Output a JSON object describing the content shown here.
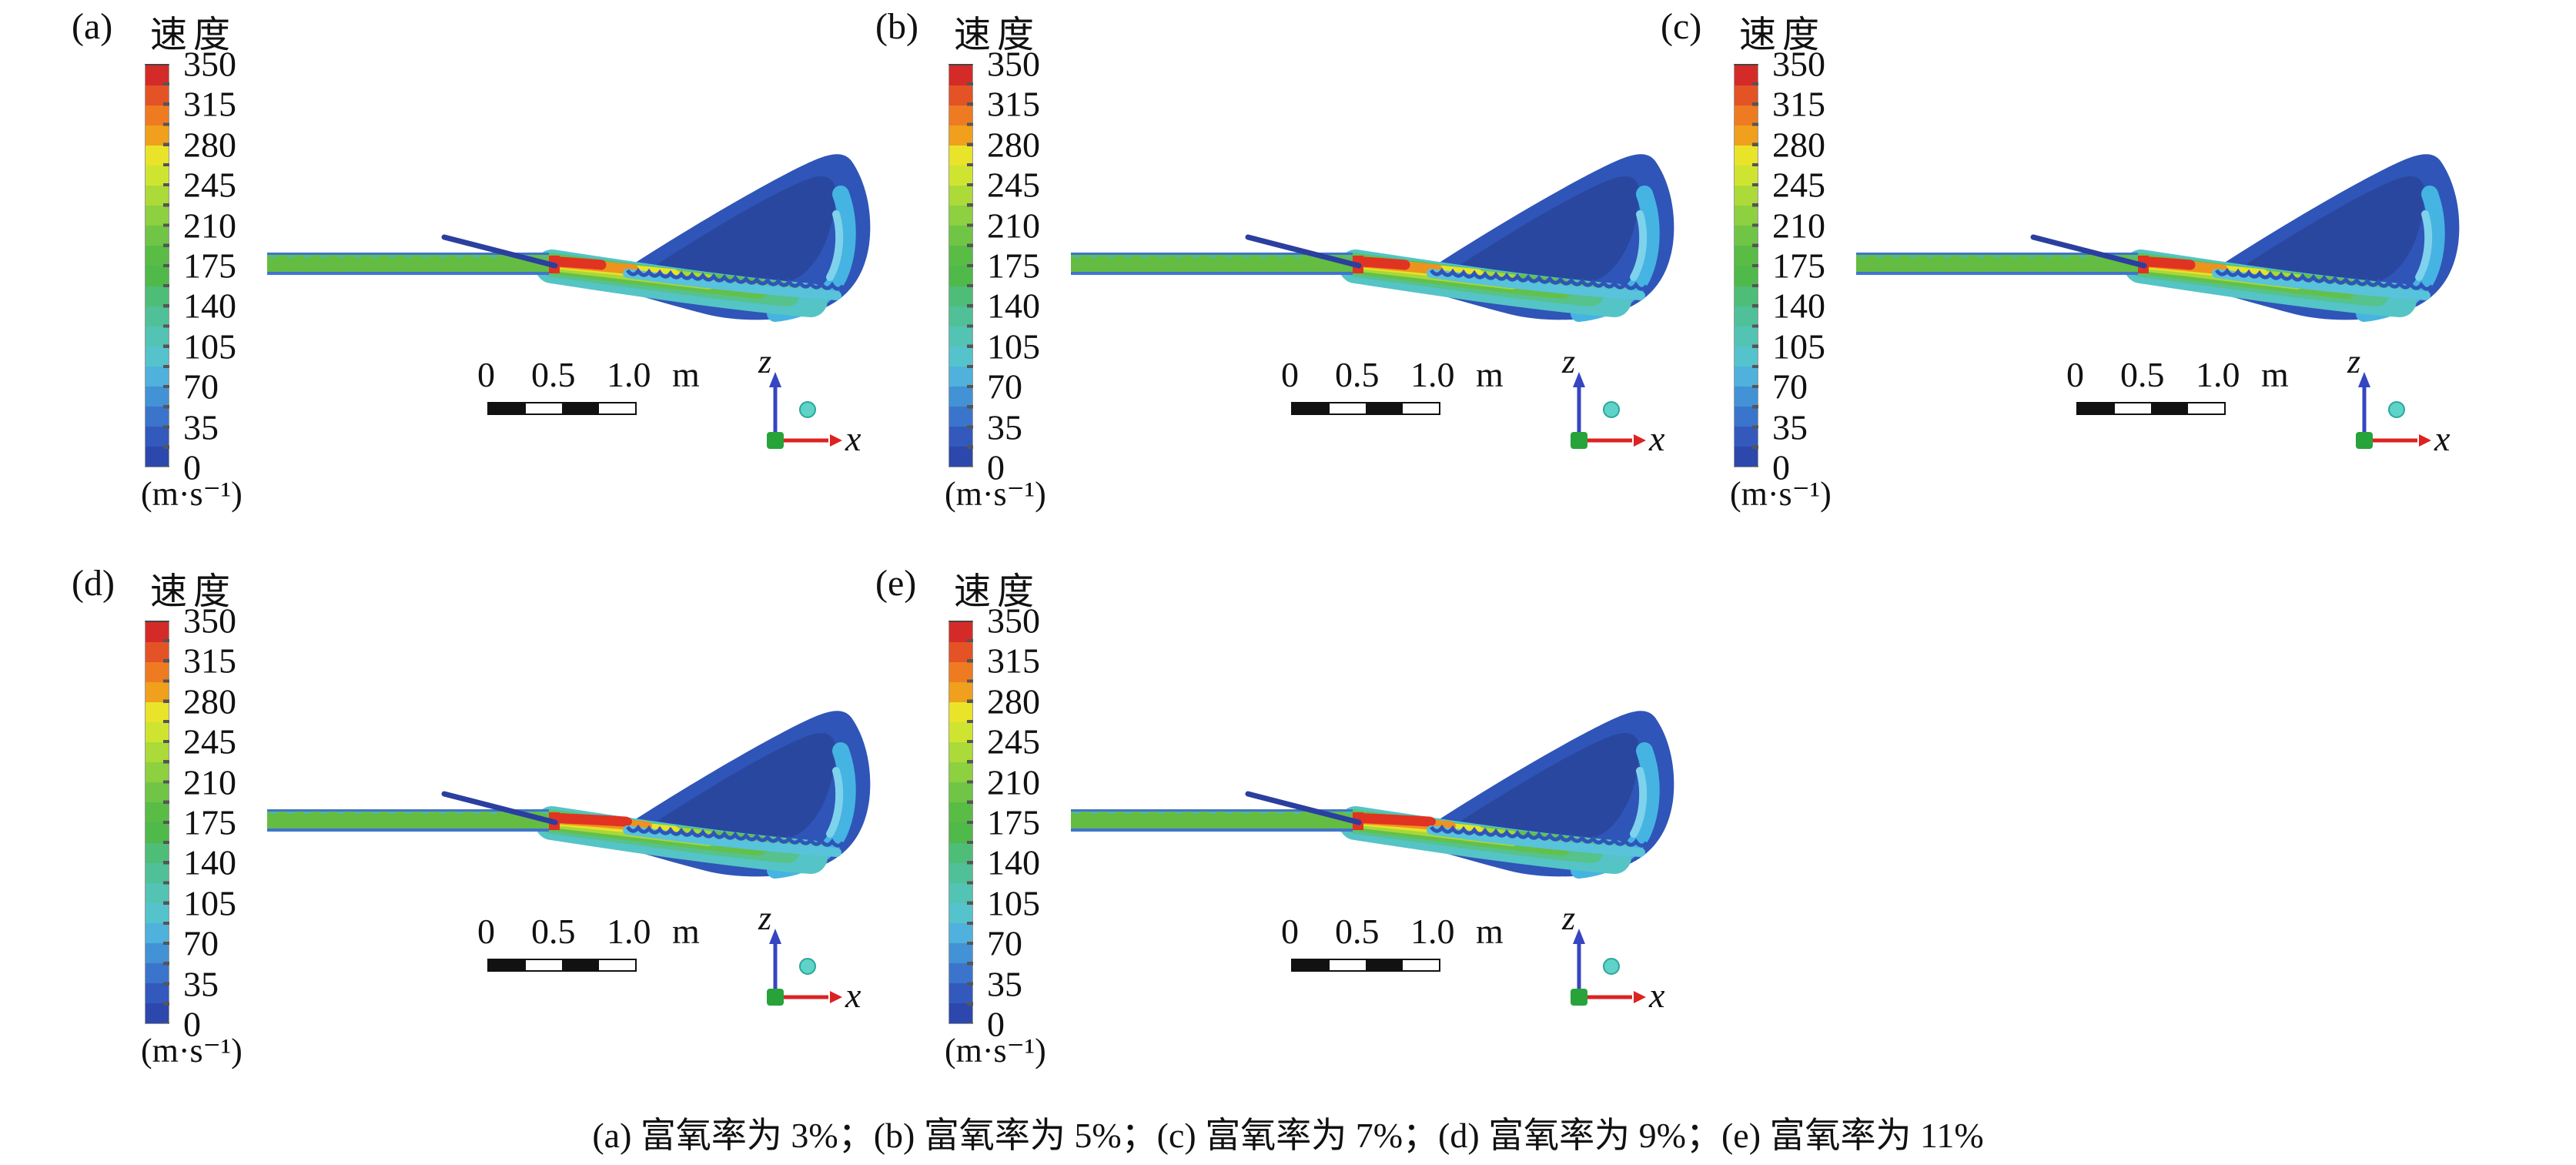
{
  "figure": {
    "caption": "(a) 富氧率为 3%；(b) 富氧率为 5%；(c) 富氧率为 7%；(d) 富氧率为 9%；(e) 富氧率为 11%"
  },
  "shared": {
    "title": "速度",
    "unit": "(m·s⁻¹)",
    "colorbar": {
      "min": 0,
      "max": 350,
      "tick_labels": [
        "350",
        "315",
        "280",
        "245",
        "210",
        "175",
        "140",
        "105",
        "70",
        "35",
        "0"
      ],
      "band_colors_top_to_bottom": [
        "#d52b28",
        "#e35326",
        "#ee7b21",
        "#f0a01c",
        "#e9e32a",
        "#cfe431",
        "#abda39",
        "#8dd040",
        "#70c546",
        "#59bc45",
        "#4fb94a",
        "#4ebd78",
        "#50c098",
        "#53c3b4",
        "#55c3cc",
        "#4fb1dc",
        "#4292d5",
        "#3a75cb",
        "#3359bd",
        "#2c48ac"
      ]
    },
    "scalebar": {
      "l0": "0",
      "l1": "0.5",
      "l2": "1.0",
      "unit": "m"
    },
    "axes": {
      "vertical": "z",
      "horizontal": "x"
    }
  },
  "panels": [
    {
      "label": "(a)",
      "enrichment": "3%",
      "grid": {
        "row": 0,
        "col": 0
      },
      "long_core": false
    },
    {
      "label": "(b)",
      "enrichment": "5%",
      "grid": {
        "row": 0,
        "col": 1
      },
      "long_core": false
    },
    {
      "label": "(c)",
      "enrichment": "7%",
      "grid": {
        "row": 0,
        "col": 2
      },
      "long_core": false
    },
    {
      "label": "(d)",
      "enrichment": "9%",
      "grid": {
        "row": 1,
        "col": 0
      },
      "long_core": true
    },
    {
      "label": "(e)",
      "enrichment": "11%",
      "grid": {
        "row": 1,
        "col": 1
      },
      "long_core": true
    }
  ],
  "palette": {
    "plume_outer": "#2f55b8",
    "plume_dark": "#2a479f",
    "cyan_band": "#45b4e2",
    "cyan_light": "#7fd2ec",
    "jet_teal": "#55c4c6",
    "jet_tealgreen": "#56c28c",
    "jet_green": "#63c04a",
    "jet_ygreen": "#a8d838",
    "jet_yellow": "#e7e32a",
    "jet_orange": "#f0921e",
    "jet_red": "#e03322",
    "jet_cyan": "#58c3da",
    "pipe_green": "#64bd42",
    "pipe_edge": "#3f74cf",
    "lance": "#2b3f9f",
    "axis_blue": "#3646c0",
    "axis_red": "#dd2222",
    "axis_green": "#27a33a",
    "axis_sphere": "#5fd3c8"
  },
  "chart_data": [
    {
      "type": "heatmap",
      "panel": "a",
      "title": "速度",
      "variable": "velocity contour (CFD jet cross-section)",
      "unit": "m·s⁻¹",
      "condition": "富氧率为 3%",
      "oxygen_enrichment_percent": 3,
      "colorbar_range": [
        0,
        350
      ],
      "colorbar_tick_step": 35,
      "colorbar_ticks": [
        350,
        315,
        280,
        245,
        210,
        175,
        140,
        105,
        70,
        35,
        0
      ],
      "scale_bar_m": [
        0,
        0.5,
        1.0
      ],
      "axes": {
        "horizontal": "x",
        "vertical": "z"
      },
      "qualitative_regions": {
        "pipe_inflow_m_s": "≈175–210 (green)",
        "jet_core_at_nozzle_m_s": "≈280–350 (orange–red)",
        "expanding_jet_m_s": "≈70–245 (yellow→green→cyan)",
        "upper_plume_recirculation_m_s": "≈0–70 (blue)"
      }
    },
    {
      "type": "heatmap",
      "panel": "b",
      "title": "速度",
      "variable": "velocity contour (CFD jet cross-section)",
      "unit": "m·s⁻¹",
      "condition": "富氧率为 5%",
      "oxygen_enrichment_percent": 5,
      "colorbar_range": [
        0,
        350
      ],
      "colorbar_tick_step": 35,
      "colorbar_ticks": [
        350,
        315,
        280,
        245,
        210,
        175,
        140,
        105,
        70,
        35,
        0
      ],
      "scale_bar_m": [
        0,
        0.5,
        1.0
      ],
      "axes": {
        "horizontal": "x",
        "vertical": "z"
      },
      "qualitative_regions": {
        "pipe_inflow_m_s": "≈175–210 (green)",
        "jet_core_at_nozzle_m_s": "≈280–350 (orange–red)",
        "expanding_jet_m_s": "≈70–245 (yellow→green→cyan)",
        "upper_plume_recirculation_m_s": "≈0–70 (blue)"
      }
    },
    {
      "type": "heatmap",
      "panel": "c",
      "title": "速度",
      "variable": "velocity contour (CFD jet cross-section)",
      "unit": "m·s⁻¹",
      "condition": "富氧率为 7%",
      "oxygen_enrichment_percent": 7,
      "colorbar_range": [
        0,
        350
      ],
      "colorbar_tick_step": 35,
      "colorbar_ticks": [
        350,
        315,
        280,
        245,
        210,
        175,
        140,
        105,
        70,
        35,
        0
      ],
      "scale_bar_m": [
        0,
        0.5,
        1.0
      ],
      "axes": {
        "horizontal": "x",
        "vertical": "z"
      },
      "qualitative_regions": {
        "pipe_inflow_m_s": "≈175–210 (green)",
        "jet_core_at_nozzle_m_s": "≈280–350 (orange–red)",
        "expanding_jet_m_s": "≈70–245 (yellow→green→cyan)",
        "upper_plume_recirculation_m_s": "≈0–70 (blue)"
      }
    },
    {
      "type": "heatmap",
      "panel": "d",
      "title": "速度",
      "variable": "velocity contour (CFD jet cross-section)",
      "unit": "m·s⁻¹",
      "condition": "富氧率为 9%",
      "oxygen_enrichment_percent": 9,
      "colorbar_range": [
        0,
        350
      ],
      "colorbar_tick_step": 35,
      "colorbar_ticks": [
        350,
        315,
        280,
        245,
        210,
        175,
        140,
        105,
        70,
        35,
        0
      ],
      "scale_bar_m": [
        0,
        0.5,
        1.0
      ],
      "axes": {
        "horizontal": "x",
        "vertical": "z"
      },
      "qualitative_regions": {
        "pipe_inflow_m_s": "≈175–210 (green)",
        "jet_core_at_nozzle_m_s": "≈280–350, longer red core (orange–red)",
        "expanding_jet_m_s": "≈70–245 (yellow→green→cyan)",
        "upper_plume_recirculation_m_s": "≈0–70 (blue)"
      }
    },
    {
      "type": "heatmap",
      "panel": "e",
      "title": "速度",
      "variable": "velocity contour (CFD jet cross-section)",
      "unit": "m·s⁻¹",
      "condition": "富氧率为 11%",
      "oxygen_enrichment_percent": 11,
      "colorbar_range": [
        0,
        350
      ],
      "colorbar_tick_step": 35,
      "colorbar_ticks": [
        350,
        315,
        280,
        245,
        210,
        175,
        140,
        105,
        70,
        35,
        0
      ],
      "scale_bar_m": [
        0,
        0.5,
        1.0
      ],
      "axes": {
        "horizontal": "x",
        "vertical": "z"
      },
      "qualitative_regions": {
        "pipe_inflow_m_s": "≈175–210 (green)",
        "jet_core_at_nozzle_m_s": "≈280–350, longer red core (orange–red)",
        "expanding_jet_m_s": "≈70–245 (yellow→green→cyan)",
        "upper_plume_recirculation_m_s": "≈0–70 (blue)"
      }
    }
  ]
}
